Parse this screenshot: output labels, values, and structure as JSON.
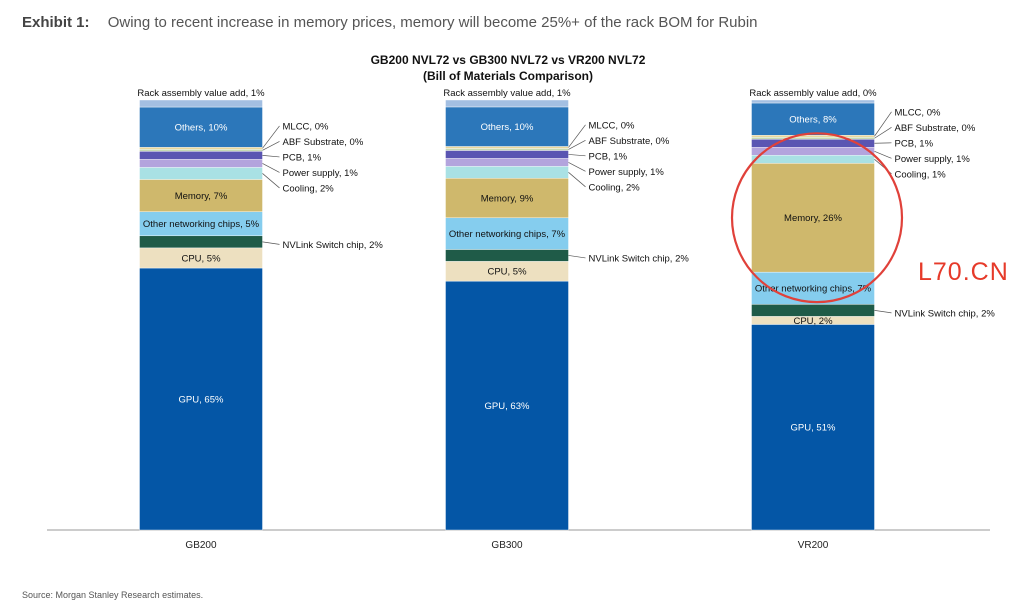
{
  "exhibit": {
    "label": "Exhibit 1:",
    "text": "Owing to recent increase in memory prices, memory will become 25%+ of the rack BOM for Rubin"
  },
  "source": "Source: Morgan Stanley Research estimates.",
  "watermark": "L70.CN",
  "chart_data": {
    "type": "bar",
    "stacked": true,
    "normalized": true,
    "title": "GB200 NVL72 vs GB300 NVL72 vs VR200 NVL72",
    "subtitle": "(Bill of Materials Comparison)",
    "categories": [
      "GB200",
      "GB300",
      "VR200"
    ],
    "series": [
      {
        "name": "GPU",
        "color": "#0456a6",
        "values": [
          65,
          63,
          51
        ]
      },
      {
        "name": "CPU",
        "color": "#ede0c0",
        "values": [
          5,
          5,
          2
        ]
      },
      {
        "name": "NVLink Switch chip",
        "color": "#1f5b48",
        "values": [
          2,
          2,
          2
        ]
      },
      {
        "name": "Other networking chips",
        "color": "#85cdee",
        "values": [
          5,
          7,
          7
        ]
      },
      {
        "name": "Memory",
        "color": "#cfb86c",
        "values": [
          7,
          9,
          26
        ]
      },
      {
        "name": "Cooling",
        "color": "#a9e1e4",
        "values": [
          2,
          2,
          1
        ]
      },
      {
        "name": "Power supply",
        "color": "#b3a4dd",
        "values": [
          1,
          1,
          1
        ]
      },
      {
        "name": "PCB",
        "color": "#5a55b2",
        "values": [
          1,
          1,
          1
        ]
      },
      {
        "name": "ABF Substrate",
        "color": "#c6d9b2",
        "values": [
          0,
          0,
          0
        ]
      },
      {
        "name": "MLCC",
        "color": "#e9d79c",
        "values": [
          0,
          0,
          0
        ]
      },
      {
        "name": "Others",
        "color": "#2c77ba",
        "values": [
          10,
          10,
          8
        ]
      },
      {
        "name": "Rack assembly value add",
        "color": "#a3bfe2",
        "values": [
          1,
          1,
          0
        ]
      }
    ],
    "data_labels": [
      [
        "GPU, 65%",
        "CPU, 5%",
        "NVLink Switch chip, 2%",
        "Other networking chips, 5%",
        "Memory, 7%",
        "Cooling, 2%",
        "Power supply, 1%",
        "PCB, 1%",
        "ABF Substrate, 0%",
        "MLCC, 0%",
        "Others, 10%",
        "Rack assembly value add, 1%"
      ],
      [
        "GPU, 63%",
        "CPU, 5%",
        "NVLink Switch chip, 2%",
        "Other networking chips, 7%",
        "Memory, 9%",
        "Cooling, 2%",
        "Power supply, 1%",
        "PCB, 1%",
        "ABF Substrate, 0%",
        "MLCC, 0%",
        "Others, 10%",
        "Rack assembly value add, 1%"
      ],
      [
        "GPU, 51%",
        "CPU, 2%",
        "NVLink Switch chip, 2%",
        "Other networking chips, 7%",
        "Memory, 26%",
        "Cooling, 1%",
        "Power supply, 1%",
        "PCB, 1%",
        "ABF Substrate, 0%",
        "MLCC, 0%",
        "Others, 8%",
        "Rack assembly value add, 0%"
      ]
    ],
    "label_modes": [
      [
        "in",
        "in",
        "out",
        "in",
        "in",
        "out",
        "out",
        "out",
        "out",
        "out",
        "in",
        "above"
      ],
      [
        "in",
        "in",
        "out",
        "in",
        "in",
        "out",
        "out",
        "out",
        "out",
        "out",
        "in",
        "above"
      ],
      [
        "in",
        "in",
        "out",
        "in",
        "in",
        "out",
        "out",
        "out",
        "out",
        "out",
        "in",
        "above"
      ]
    ],
    "highlight": {
      "category": "VR200",
      "series": "Memory",
      "color": "#e0413a"
    },
    "ylim": [
      0,
      100
    ],
    "legend": "none",
    "grid": false
  }
}
